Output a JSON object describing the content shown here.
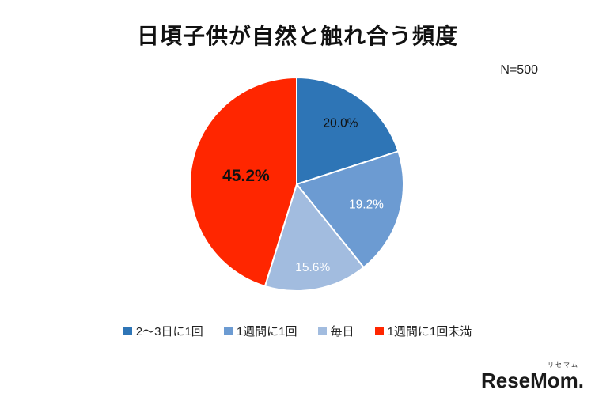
{
  "title": "日頃子供が自然と触れ合う頻度",
  "sample_size": "N=500",
  "logo": {
    "ruby": "リセマム",
    "main": "ReseMom."
  },
  "chart_data": {
    "type": "pie",
    "title": "日頃子供が自然と触れ合う頻度",
    "n_label": "N=500",
    "start_angle_deg": 0,
    "direction": "clockwise",
    "legend_position": "bottom",
    "slices": [
      {
        "label": "2〜3日に1回",
        "value": 20.0,
        "display": "20.0%",
        "color": "#2e75b6",
        "text_color": "#111111",
        "label_radius": 0.7,
        "emphasis": false
      },
      {
        "label": "1週間に1回",
        "value": 19.2,
        "display": "19.2%",
        "color": "#6c9bd2",
        "text_color": "#ffffff",
        "label_radius": 0.68,
        "emphasis": false
      },
      {
        "label": "毎日",
        "value": 15.6,
        "display": "15.6%",
        "color": "#a2bcdf",
        "text_color": "#ffffff",
        "label_radius": 0.8,
        "emphasis": false
      },
      {
        "label": "1週間に1回未満",
        "value": 45.2,
        "display": "45.2%",
        "color": "#ff2600",
        "text_color": "#111111",
        "label_radius": 0.48,
        "emphasis": true
      }
    ]
  }
}
